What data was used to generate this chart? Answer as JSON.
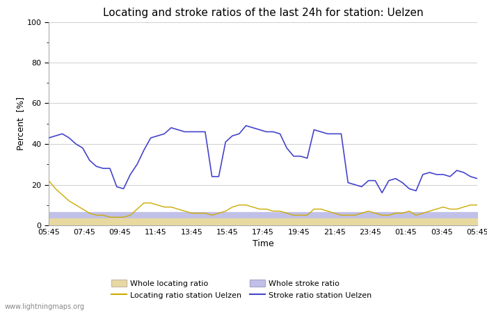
{
  "title": "Locating and stroke ratios of the last 24h for station: Uelzen",
  "xlabel": "Time",
  "ylabel": "Percent  [%]",
  "ylim": [
    0,
    100
  ],
  "yticks": [
    0,
    20,
    40,
    60,
    80,
    100
  ],
  "xtick_labels": [
    "05:45",
    "07:45",
    "09:45",
    "11:45",
    "13:45",
    "15:45",
    "17:45",
    "19:45",
    "21:45",
    "23:45",
    "01:45",
    "03:45",
    "05:45"
  ],
  "background_color": "#ffffff",
  "plot_bg_color": "#ffffff",
  "watermark": "www.lightningmaps.org",
  "stroke_ratio_station": [
    43,
    44,
    45,
    43,
    40,
    38,
    32,
    29,
    28,
    28,
    19,
    18,
    25,
    30,
    37,
    43,
    44,
    45,
    48,
    47,
    46,
    46,
    46,
    46,
    24,
    24,
    41,
    44,
    45,
    49,
    48,
    47,
    46,
    46,
    45,
    38,
    34,
    34,
    33,
    47,
    46,
    45,
    45,
    45,
    21,
    20,
    19,
    22,
    22,
    16,
    22,
    23,
    21,
    18,
    17,
    25,
    26,
    25,
    25,
    24,
    27,
    26,
    24,
    23
  ],
  "locating_ratio_station": [
    22,
    18,
    15,
    12,
    10,
    8,
    6,
    5,
    5,
    4,
    4,
    4,
    5,
    8,
    11,
    11,
    10,
    9,
    9,
    8,
    7,
    6,
    6,
    6,
    5,
    6,
    7,
    9,
    10,
    10,
    9,
    8,
    8,
    7,
    7,
    6,
    5,
    5,
    5,
    8,
    8,
    7,
    6,
    5,
    5,
    5,
    6,
    7,
    6,
    5,
    5,
    6,
    6,
    7,
    5,
    6,
    7,
    8,
    9,
    8,
    8,
    9,
    10,
    10
  ],
  "whole_locating_ratio": 3.5,
  "whole_stroke_ratio": 6.5,
  "color_locating_station": "#ccaa00",
  "color_stroke_station": "#4444cc",
  "color_whole_locating": "#e8d9a0",
  "color_whole_stroke": "#c0c0e8",
  "title_fontsize": 11,
  "axis_fontsize": 9,
  "tick_fontsize": 8,
  "legend_fontsize": 8
}
